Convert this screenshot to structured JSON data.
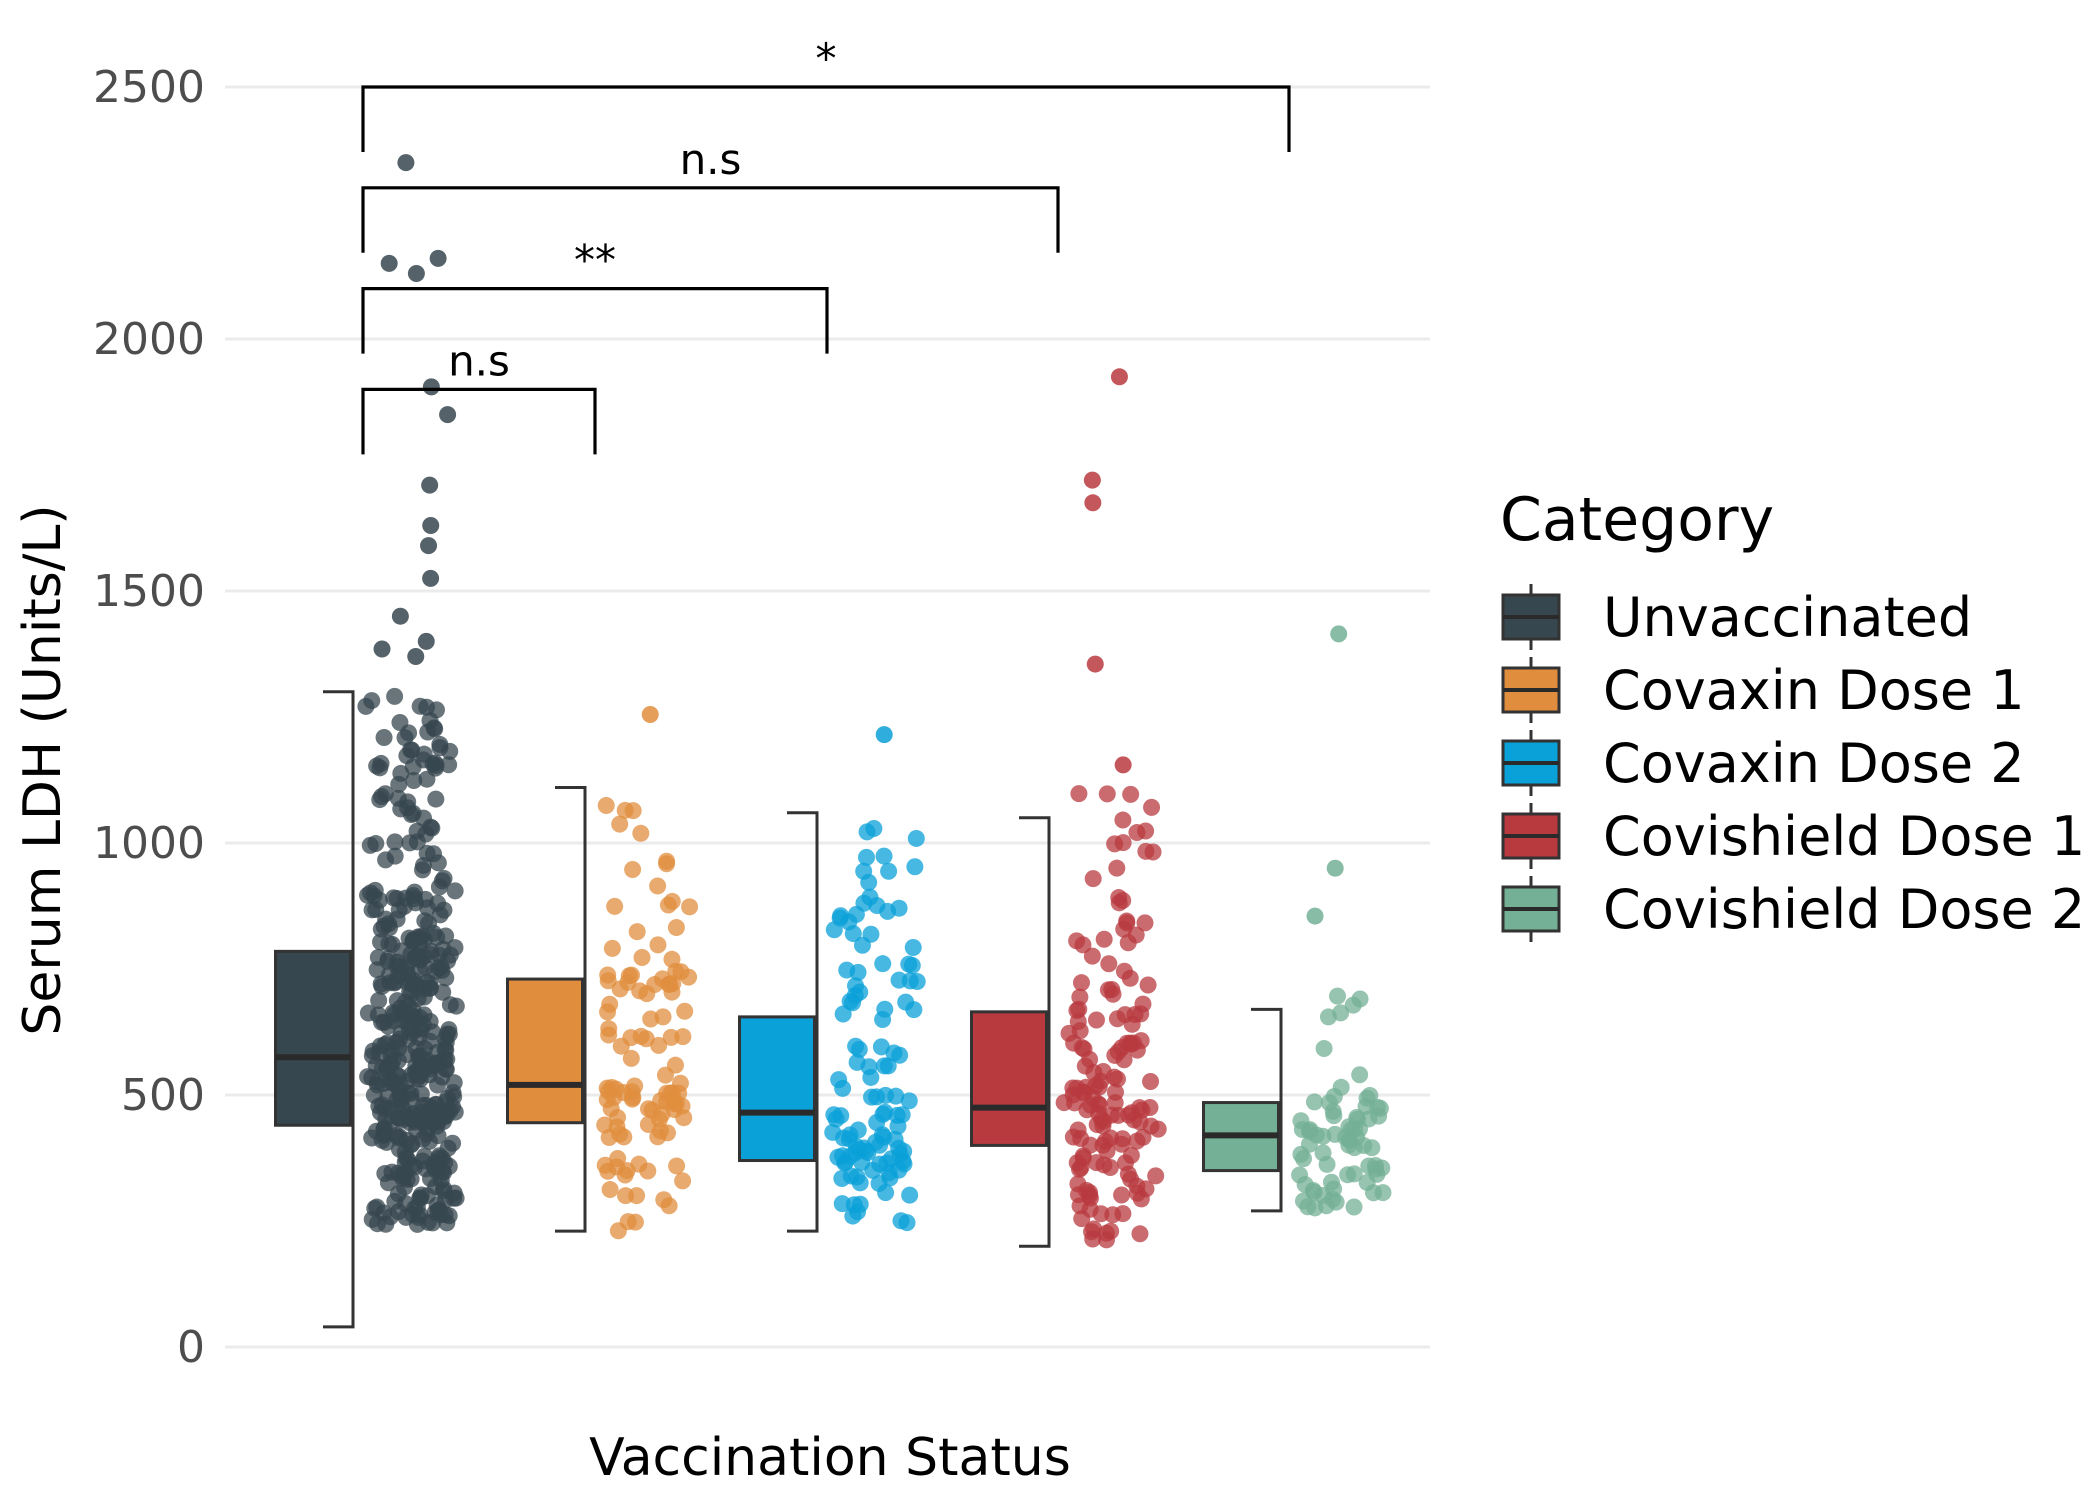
{
  "chart_data": {
    "type": "boxplot",
    "xlabel": "Vaccination Status",
    "ylabel": "Serum LDH (Units/L)",
    "ylim": [
      0,
      2500
    ],
    "yticks": [
      0,
      500,
      1000,
      1500,
      2000,
      2500
    ],
    "grid": true,
    "legend": {
      "title": "Category",
      "position": "right"
    },
    "series": [
      {
        "name": "Unvaccinated",
        "color": "#37474f",
        "whisker_low": 40,
        "q1": 440,
        "median": 575,
        "q3": 785,
        "whisker_high": 1300,
        "outliers": [
          2350,
          2160,
          2150,
          2130,
          1905,
          1850,
          1710,
          1630,
          1590,
          1525,
          1450,
          1400,
          1385,
          1370
        ],
        "jitter_range": [
          240,
          1300
        ],
        "jitter_count": 420
      },
      {
        "name": "Covaxin Dose 1",
        "color": "#e08e3e",
        "whisker_low": 230,
        "q1": 445,
        "median": 520,
        "q3": 730,
        "whisker_high": 1110,
        "outliers": [
          1255
        ],
        "jitter_range": [
          230,
          1110
        ],
        "jitter_count": 110
      },
      {
        "name": "Covaxin Dose 2",
        "color": "#0aa0d8",
        "whisker_low": 230,
        "q1": 370,
        "median": 465,
        "q3": 655,
        "whisker_high": 1060,
        "outliers": [
          1215
        ],
        "jitter_range": [
          230,
          1060
        ],
        "jitter_count": 115
      },
      {
        "name": "Covishield Dose 1",
        "color": "#b83a3f",
        "whisker_low": 200,
        "q1": 400,
        "median": 475,
        "q3": 665,
        "whisker_high": 1050,
        "outliers": [
          1925,
          1720,
          1675,
          1355,
          1155
        ],
        "jitter_range": [
          200,
          1100
        ],
        "jitter_count": 150
      },
      {
        "name": "Covishield Dose 2",
        "color": "#74b096",
        "whisker_low": 270,
        "q1": 350,
        "median": 420,
        "q3": 485,
        "whisker_high": 670,
        "outliers": [
          1415,
          950,
          855
        ],
        "jitter_range": [
          270,
          710
        ],
        "jitter_count": 70
      }
    ],
    "comparisons": [
      {
        "groups": [
          0,
          1
        ],
        "label": "n.s",
        "y": 1900
      },
      {
        "groups": [
          0,
          2
        ],
        "label": "**",
        "y": 2100
      },
      {
        "groups": [
          0,
          3
        ],
        "label": "n.s",
        "y": 2300
      },
      {
        "groups": [
          0,
          4
        ],
        "label": "*",
        "y": 2500
      }
    ]
  }
}
